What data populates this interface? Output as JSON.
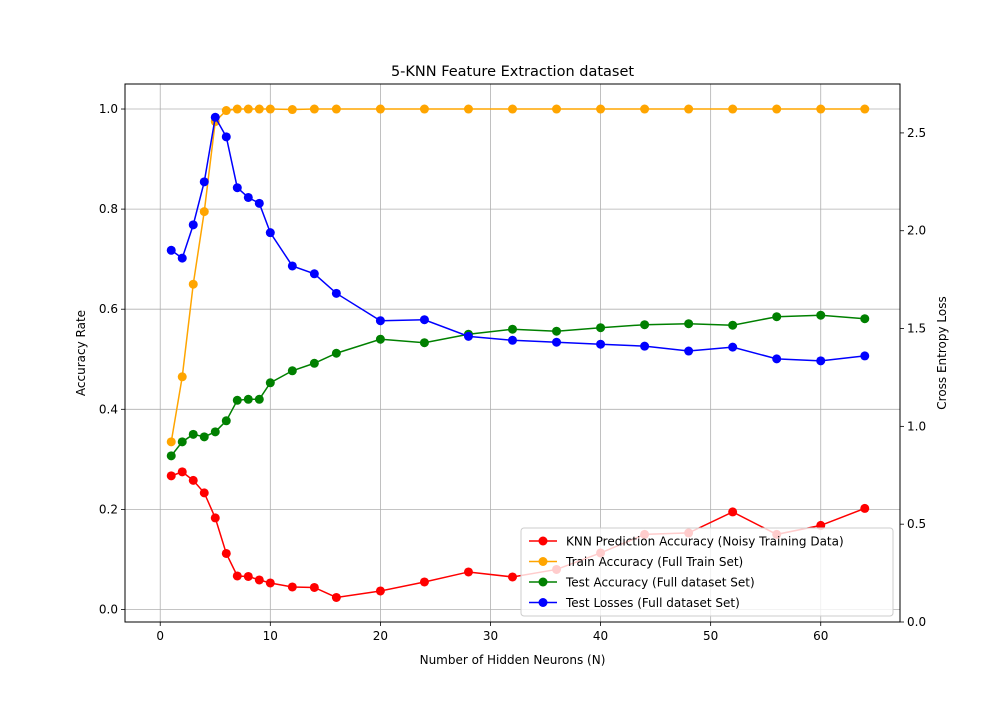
{
  "chart_data": {
    "type": "line",
    "title": "5-KNN Feature Extraction dataset",
    "xlabel": "Number of Hidden Neurons (N)",
    "ylabel": "Accuracy Rate",
    "ylabel_right": "Cross Entropy Loss",
    "xlim": [
      -3.2,
      67.2
    ],
    "ylim": [
      -0.025,
      1.05
    ],
    "ylim_right": [
      0,
      2.75
    ],
    "xticks": [
      0,
      10,
      20,
      30,
      40,
      50,
      60
    ],
    "yticks": [
      0.0,
      0.2,
      0.4,
      0.6,
      0.8,
      1.0
    ],
    "yticks_right": [
      0.0,
      0.5,
      1.0,
      1.5,
      2.0,
      2.5
    ],
    "x": [
      1,
      2,
      3,
      4,
      5,
      6,
      7,
      8,
      9,
      10,
      12,
      14,
      16,
      20,
      24,
      28,
      32,
      36,
      40,
      44,
      48,
      52,
      56,
      60,
      64
    ],
    "grid": true,
    "legend_position": "lower-right",
    "series": [
      {
        "name": "KNN Prediction Accuracy (Noisy Training Data)",
        "color": "#ff0000",
        "axis": "left",
        "values": [
          0.267,
          0.275,
          0.258,
          0.233,
          0.183,
          0.112,
          0.067,
          0.066,
          0.059,
          0.053,
          0.045,
          0.044,
          0.024,
          0.037,
          0.055,
          0.075,
          0.065,
          0.08,
          0.113,
          0.15,
          0.153,
          0.195,
          0.15,
          0.168,
          0.202
        ]
      },
      {
        "name": "Train Accuracy (Full Train Set)",
        "color": "#ffa500",
        "axis": "left",
        "values": [
          0.335,
          0.465,
          0.65,
          0.795,
          0.975,
          0.997,
          1.0,
          1.0,
          1.0,
          1.0,
          0.999,
          1.0,
          1.0,
          1.0,
          1.0,
          1.0,
          1.0,
          1.0,
          1.0,
          1.0,
          1.0,
          1.0,
          1.0,
          1.0,
          1.0
        ]
      },
      {
        "name": "Test Accuracy (Full dataset Set)",
        "color": "#008000",
        "axis": "left",
        "values": [
          0.307,
          0.335,
          0.35,
          0.345,
          0.355,
          0.377,
          0.418,
          0.42,
          0.42,
          0.453,
          0.477,
          0.492,
          0.512,
          0.54,
          0.533,
          0.55,
          0.56,
          0.556,
          0.563,
          0.569,
          0.571,
          0.568,
          0.585,
          0.588,
          0.581
        ]
      },
      {
        "name": "Test Losses (Full dataset Set)",
        "color": "#0000ff",
        "axis": "right",
        "values": [
          1.9,
          1.86,
          2.03,
          2.25,
          2.58,
          2.48,
          2.22,
          2.17,
          2.14,
          1.99,
          1.82,
          1.78,
          1.68,
          1.54,
          1.545,
          1.46,
          1.44,
          1.43,
          1.42,
          1.41,
          1.385,
          1.405,
          1.345,
          1.335,
          1.36
        ]
      }
    ]
  }
}
